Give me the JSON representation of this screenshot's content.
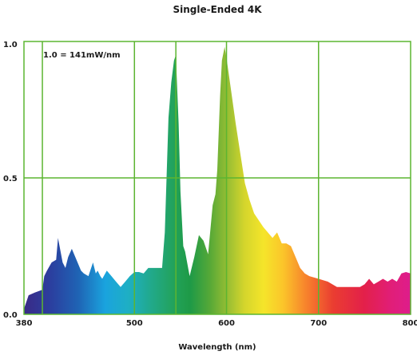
{
  "chart_data": {
    "type": "area",
    "title": "Single-Ended 4K",
    "xlabel": "Wavelength (nm)",
    "ylabel": "",
    "annotation": "1.0 = 141mW/nm",
    "xlim": [
      380,
      800
    ],
    "ylim": [
      0,
      1.0
    ],
    "x_ticks": [
      380,
      500,
      600,
      700,
      800
    ],
    "x_tick_labels": [
      "380",
      "500",
      "600",
      "700",
      "800"
    ],
    "y_ticks": [
      0,
      0.5,
      1.0
    ],
    "y_tick_labels": [
      "0.0",
      "0.5",
      "1.0"
    ],
    "x_gridlines": [
      400,
      500,
      545,
      600,
      700
    ],
    "y_gridlines": [
      0.5
    ],
    "grid": true,
    "grid_color": "#5cb531",
    "fill": "spectral-gradient",
    "series": [
      {
        "x": [
          380,
          385,
          392,
          400,
          402,
          405,
          410,
          415,
          417,
          422,
          425,
          428,
          432,
          437,
          442,
          445,
          450,
          455,
          458,
          460,
          463,
          465,
          470,
          475,
          480,
          485,
          490,
          495,
          500,
          505,
          510,
          515,
          520,
          530,
          533,
          537,
          540,
          543,
          545,
          548,
          550,
          553,
          555,
          560,
          565,
          570,
          575,
          580,
          585,
          588,
          590,
          593,
          595,
          598,
          600,
          605,
          610,
          615,
          620,
          625,
          630,
          640,
          650,
          655,
          660,
          665,
          670,
          675,
          680,
          685,
          690,
          700,
          710,
          720,
          730,
          740,
          745,
          750,
          755,
          760,
          765,
          770,
          775,
          780,
          785,
          790,
          795,
          800
        ],
        "y": [
          0.02,
          0.07,
          0.08,
          0.09,
          0.14,
          0.16,
          0.19,
          0.2,
          0.28,
          0.19,
          0.17,
          0.21,
          0.24,
          0.2,
          0.16,
          0.15,
          0.14,
          0.19,
          0.15,
          0.16,
          0.14,
          0.13,
          0.16,
          0.14,
          0.12,
          0.1,
          0.12,
          0.14,
          0.155,
          0.155,
          0.15,
          0.17,
          0.17,
          0.17,
          0.3,
          0.72,
          0.85,
          0.93,
          0.95,
          0.7,
          0.45,
          0.25,
          0.23,
          0.14,
          0.21,
          0.29,
          0.27,
          0.22,
          0.4,
          0.44,
          0.53,
          0.8,
          0.93,
          0.98,
          0.94,
          0.82,
          0.7,
          0.59,
          0.48,
          0.42,
          0.37,
          0.32,
          0.28,
          0.3,
          0.26,
          0.26,
          0.25,
          0.21,
          0.17,
          0.15,
          0.14,
          0.13,
          0.12,
          0.1,
          0.1,
          0.1,
          0.1,
          0.11,
          0.13,
          0.11,
          0.12,
          0.13,
          0.12,
          0.13,
          0.12,
          0.15,
          0.155,
          0.15
        ]
      }
    ]
  }
}
